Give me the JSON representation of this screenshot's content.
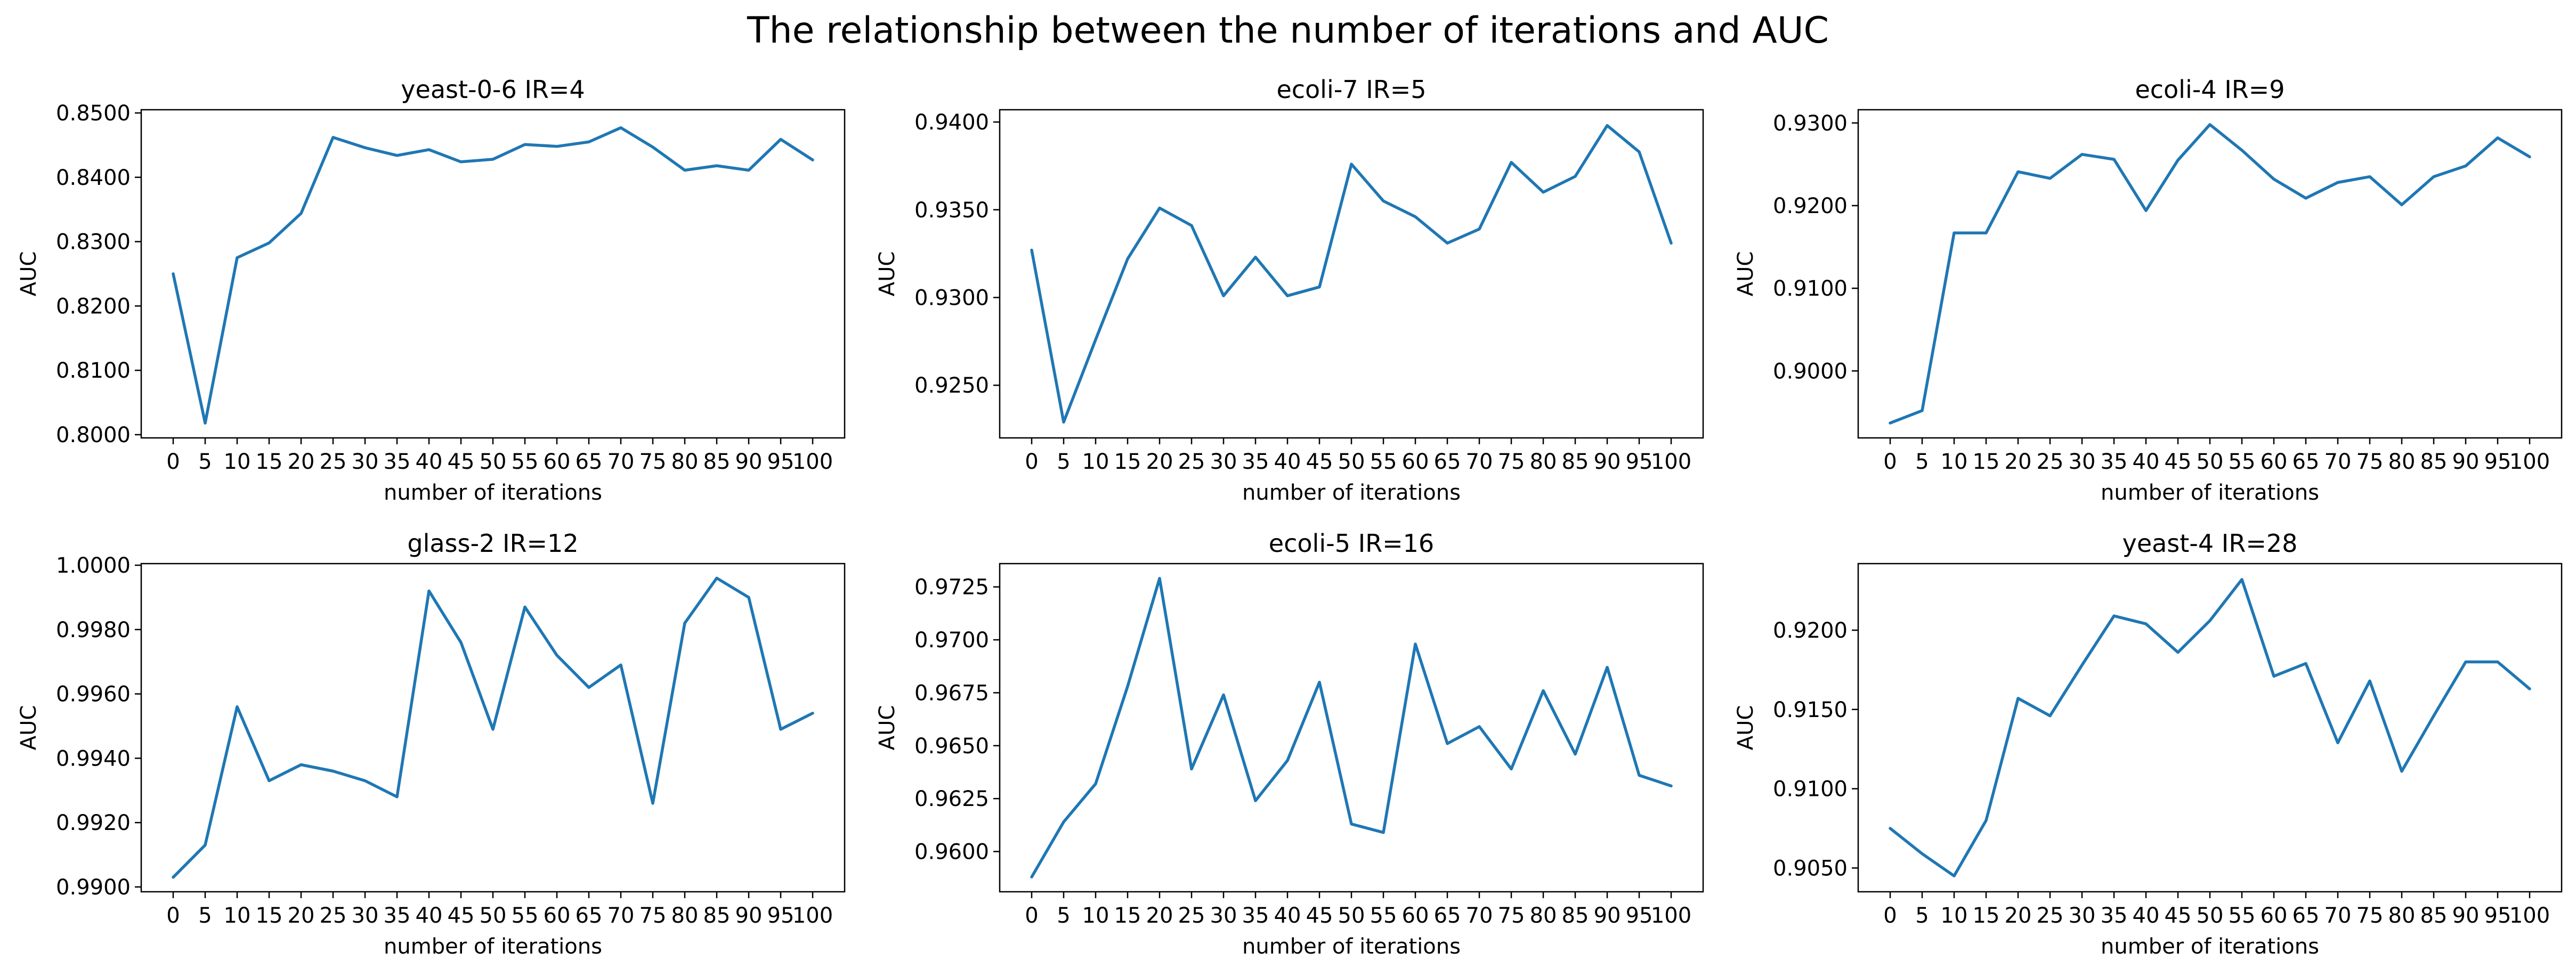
{
  "title": "The relationship between the number of iterations and AUC",
  "chart_data": [
    {
      "type": "line",
      "title": "yeast-0-6 IR=4",
      "xlabel": "number of iterations",
      "ylabel": "AUC",
      "x": [
        0,
        5,
        10,
        15,
        20,
        25,
        30,
        35,
        40,
        45,
        50,
        55,
        60,
        65,
        70,
        75,
        80,
        85,
        90,
        95,
        100
      ],
      "series": [
        {
          "values": [
            0.825,
            0.8018,
            0.8275,
            0.8298,
            0.8344,
            0.8462,
            0.8446,
            0.8434,
            0.8443,
            0.8424,
            0.8428,
            0.8451,
            0.8448,
            0.8455,
            0.8477,
            0.8447,
            0.8411,
            0.8418,
            0.8411,
            0.8459,
            0.8427
          ],
          "color": "#1f77b4"
        }
      ],
      "ylim": [
        0.7995,
        0.8505
      ],
      "yticks": [
        0.8,
        0.81,
        0.82,
        0.83,
        0.84,
        0.85
      ],
      "ytick_labels": [
        "0.8000",
        "0.8100",
        "0.8200",
        "0.8300",
        "0.8400",
        "0.8500"
      ],
      "grid": false
    },
    {
      "type": "line",
      "title": "ecoli-7 IR=5",
      "xlabel": "number of iterations",
      "ylabel": "AUC",
      "x": [
        0,
        5,
        10,
        15,
        20,
        25,
        30,
        35,
        40,
        45,
        50,
        55,
        60,
        65,
        70,
        75,
        80,
        85,
        90,
        95,
        100
      ],
      "series": [
        {
          "values": [
            0.9327,
            0.9229,
            0.9276,
            0.9322,
            0.9351,
            0.9341,
            0.9301,
            0.9323,
            0.9301,
            0.9306,
            0.9376,
            0.9355,
            0.9346,
            0.9331,
            0.9339,
            0.9377,
            0.936,
            0.9369,
            0.9398,
            0.9383,
            0.9331
          ],
          "color": "#1f77b4"
        }
      ],
      "ylim": [
        0.922,
        0.9407
      ],
      "yticks": [
        0.925,
        0.93,
        0.935,
        0.94
      ],
      "ytick_labels": [
        "0.9250",
        "0.9300",
        "0.9350",
        "0.9400"
      ],
      "grid": false
    },
    {
      "type": "line",
      "title": "ecoli-4 IR=9",
      "xlabel": "number of iterations",
      "ylabel": "AUC",
      "x": [
        0,
        5,
        10,
        15,
        20,
        25,
        30,
        35,
        40,
        45,
        50,
        55,
        60,
        65,
        70,
        75,
        80,
        85,
        90,
        95,
        100
      ],
      "series": [
        {
          "values": [
            0.8937,
            0.8952,
            0.9167,
            0.9167,
            0.9241,
            0.9233,
            0.9262,
            0.9256,
            0.9194,
            0.9255,
            0.9298,
            0.9267,
            0.9232,
            0.9209,
            0.9228,
            0.9235,
            0.9201,
            0.9235,
            0.9248,
            0.9282,
            0.9259
          ],
          "color": "#1f77b4"
        }
      ],
      "ylim": [
        0.8919,
        0.9316
      ],
      "yticks": [
        0.9,
        0.91,
        0.92,
        0.93
      ],
      "ytick_labels": [
        "0.9000",
        "0.9100",
        "0.9200",
        "0.9300"
      ],
      "grid": false
    },
    {
      "type": "line",
      "title": "glass-2 IR=12",
      "xlabel": "number of iterations",
      "ylabel": "AUC",
      "x": [
        0,
        5,
        10,
        15,
        20,
        25,
        30,
        35,
        40,
        45,
        50,
        55,
        60,
        65,
        70,
        75,
        80,
        85,
        90,
        95,
        100
      ],
      "series": [
        {
          "values": [
            0.9903,
            0.9913,
            0.9956,
            0.9933,
            0.9938,
            0.9936,
            0.9933,
            0.9928,
            0.9992,
            0.9976,
            0.9949,
            0.9987,
            0.9972,
            0.9962,
            0.9969,
            0.9926,
            0.9982,
            0.9996,
            0.999,
            0.9949,
            0.9954
          ],
          "color": "#1f77b4"
        }
      ],
      "ylim": [
        0.98985,
        1.00005
      ],
      "yticks": [
        0.99,
        0.992,
        0.994,
        0.996,
        0.998,
        1.0
      ],
      "ytick_labels": [
        "0.9900",
        "0.9920",
        "0.9940",
        "0.9960",
        "0.9980",
        "1.0000"
      ],
      "grid": false
    },
    {
      "type": "line",
      "title": "ecoli-5 IR=16",
      "xlabel": "number of iterations",
      "ylabel": "AUC",
      "x": [
        0,
        5,
        10,
        15,
        20,
        25,
        30,
        35,
        40,
        45,
        50,
        55,
        60,
        65,
        70,
        75,
        80,
        85,
        90,
        95,
        100
      ],
      "series": [
        {
          "values": [
            0.9588,
            0.9614,
            0.9632,
            0.9678,
            0.9729,
            0.9639,
            0.9674,
            0.9624,
            0.9643,
            0.968,
            0.9613,
            0.9609,
            0.9698,
            0.9651,
            0.9659,
            0.9639,
            0.9676,
            0.9646,
            0.9687,
            0.9636,
            0.9631
          ],
          "color": "#1f77b4"
        }
      ],
      "ylim": [
        0.9581,
        0.9736
      ],
      "yticks": [
        0.96,
        0.9625,
        0.965,
        0.9675,
        0.97,
        0.9725
      ],
      "ytick_labels": [
        "0.9600",
        "0.9625",
        "0.9650",
        "0.9675",
        "0.9700",
        "0.9725"
      ],
      "grid": false
    },
    {
      "type": "line",
      "title": "yeast-4 IR=28",
      "xlabel": "number of iterations",
      "ylabel": "AUC",
      "x": [
        0,
        5,
        10,
        15,
        20,
        25,
        30,
        35,
        40,
        45,
        50,
        55,
        60,
        65,
        70,
        75,
        80,
        85,
        90,
        95,
        100
      ],
      "series": [
        {
          "values": [
            0.9075,
            0.9059,
            0.9045,
            0.908,
            0.9157,
            0.9146,
            0.9178,
            0.9209,
            0.9204,
            0.9186,
            0.9206,
            0.9232,
            0.9171,
            0.9179,
            0.9129,
            0.9168,
            0.9111,
            0.9146,
            0.918,
            0.918,
            0.9163
          ],
          "color": "#1f77b4"
        }
      ],
      "ylim": [
        0.9035,
        0.9242
      ],
      "yticks": [
        0.905,
        0.91,
        0.915,
        0.92
      ],
      "ytick_labels": [
        "0.9050",
        "0.9100",
        "0.9150",
        "0.9200"
      ],
      "grid": false
    }
  ]
}
